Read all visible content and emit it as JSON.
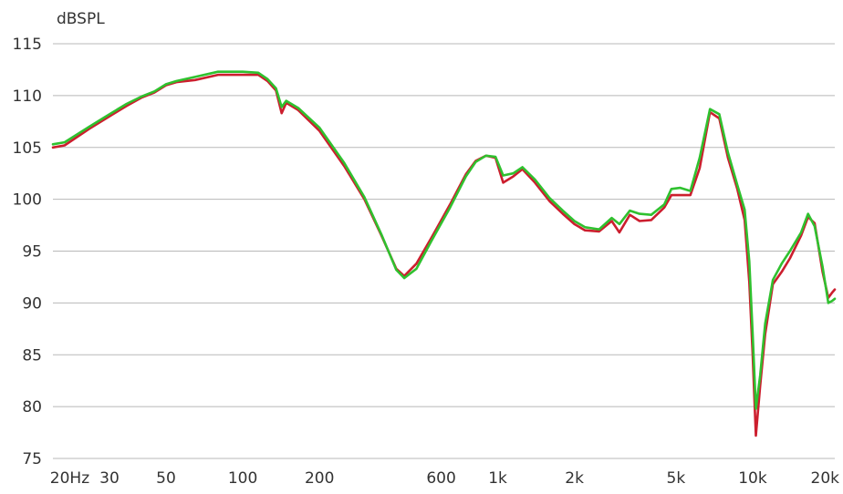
{
  "chart_data": {
    "type": "line",
    "ylabel": "dBSPL",
    "xscale": "log",
    "xlim": [
      18,
      21000
    ],
    "ylim": [
      75,
      115
    ],
    "grid": "horizontal",
    "yticks": [
      75,
      80,
      85,
      90,
      95,
      100,
      105,
      110,
      115
    ],
    "xticks": [
      {
        "label": "20Hz",
        "value": 20
      },
      {
        "label": "30",
        "value": 30
      },
      {
        "label": "50",
        "value": 50
      },
      {
        "label": "100",
        "value": 100
      },
      {
        "label": "200",
        "value": 200
      },
      {
        "label": "600",
        "value": 600
      },
      {
        "label": "1k",
        "value": 1000
      },
      {
        "label": "2k",
        "value": 2000
      },
      {
        "label": "5k",
        "value": 5000
      },
      {
        "label": "10k",
        "value": 10000
      },
      {
        "label": "20k",
        "value": 20000
      }
    ],
    "series": [
      {
        "color": "#cc1e2e",
        "points": [
          [
            18,
            105.0
          ],
          [
            20,
            105.2
          ],
          [
            25,
            106.8
          ],
          [
            30,
            108.0
          ],
          [
            35,
            109.0
          ],
          [
            40,
            109.8
          ],
          [
            45,
            110.3
          ],
          [
            50,
            111.0
          ],
          [
            55,
            111.3
          ],
          [
            65,
            111.5
          ],
          [
            80,
            112.0
          ],
          [
            100,
            112.0
          ],
          [
            115,
            112.0
          ],
          [
            125,
            111.4
          ],
          [
            135,
            110.5
          ],
          [
            142,
            108.3
          ],
          [
            148,
            109.3
          ],
          [
            165,
            108.6
          ],
          [
            200,
            106.6
          ],
          [
            250,
            103.2
          ],
          [
            300,
            100.0
          ],
          [
            350,
            96.5
          ],
          [
            400,
            93.3
          ],
          [
            430,
            92.6
          ],
          [
            480,
            93.8
          ],
          [
            550,
            96.3
          ],
          [
            650,
            99.5
          ],
          [
            750,
            102.4
          ],
          [
            820,
            103.7
          ],
          [
            900,
            104.2
          ],
          [
            980,
            104.0
          ],
          [
            1050,
            101.6
          ],
          [
            1150,
            102.2
          ],
          [
            1250,
            102.9
          ],
          [
            1400,
            101.6
          ],
          [
            1600,
            99.8
          ],
          [
            1800,
            98.6
          ],
          [
            2000,
            97.6
          ],
          [
            2200,
            97.0
          ],
          [
            2500,
            96.9
          ],
          [
            2800,
            97.9
          ],
          [
            3000,
            96.8
          ],
          [
            3300,
            98.5
          ],
          [
            3600,
            97.9
          ],
          [
            4000,
            98.0
          ],
          [
            4500,
            99.2
          ],
          [
            4800,
            100.4
          ],
          [
            5200,
            100.4
          ],
          [
            5700,
            100.4
          ],
          [
            6200,
            103.0
          ],
          [
            6800,
            108.4
          ],
          [
            7400,
            107.8
          ],
          [
            8000,
            104.0
          ],
          [
            8700,
            101.0
          ],
          [
            9300,
            98.0
          ],
          [
            9700,
            92.0
          ],
          [
            10000,
            85.0
          ],
          [
            10300,
            77.2
          ],
          [
            10700,
            82.0
          ],
          [
            11200,
            87.0
          ],
          [
            12000,
            91.8
          ],
          [
            13000,
            93.0
          ],
          [
            14000,
            94.3
          ],
          [
            15500,
            96.5
          ],
          [
            16500,
            98.3
          ],
          [
            17500,
            97.7
          ],
          [
            18800,
            93.0
          ],
          [
            19800,
            90.5
          ],
          [
            20500,
            91.0
          ],
          [
            21000,
            91.3
          ]
        ]
      },
      {
        "color": "#2fc12f",
        "points": [
          [
            18,
            105.3
          ],
          [
            20,
            105.5
          ],
          [
            25,
            107.0
          ],
          [
            30,
            108.2
          ],
          [
            35,
            109.2
          ],
          [
            40,
            109.9
          ],
          [
            45,
            110.4
          ],
          [
            50,
            111.1
          ],
          [
            55,
            111.4
          ],
          [
            65,
            111.8
          ],
          [
            80,
            112.3
          ],
          [
            100,
            112.3
          ],
          [
            115,
            112.2
          ],
          [
            125,
            111.6
          ],
          [
            135,
            110.7
          ],
          [
            142,
            108.9
          ],
          [
            148,
            109.5
          ],
          [
            165,
            108.8
          ],
          [
            200,
            106.9
          ],
          [
            250,
            103.5
          ],
          [
            300,
            100.2
          ],
          [
            350,
            96.6
          ],
          [
            400,
            93.2
          ],
          [
            430,
            92.4
          ],
          [
            480,
            93.3
          ],
          [
            550,
            96.0
          ],
          [
            650,
            99.2
          ],
          [
            750,
            102.2
          ],
          [
            820,
            103.6
          ],
          [
            900,
            104.2
          ],
          [
            980,
            104.1
          ],
          [
            1050,
            102.3
          ],
          [
            1150,
            102.5
          ],
          [
            1250,
            103.1
          ],
          [
            1400,
            101.9
          ],
          [
            1600,
            100.1
          ],
          [
            1800,
            98.9
          ],
          [
            2000,
            97.9
          ],
          [
            2200,
            97.3
          ],
          [
            2500,
            97.1
          ],
          [
            2800,
            98.2
          ],
          [
            3000,
            97.6
          ],
          [
            3300,
            98.9
          ],
          [
            3600,
            98.6
          ],
          [
            4000,
            98.5
          ],
          [
            4500,
            99.5
          ],
          [
            4800,
            101.0
          ],
          [
            5200,
            101.1
          ],
          [
            5700,
            100.8
          ],
          [
            6200,
            104.0
          ],
          [
            6800,
            108.7
          ],
          [
            7400,
            108.2
          ],
          [
            8000,
            104.5
          ],
          [
            8700,
            101.4
          ],
          [
            9300,
            99.0
          ],
          [
            9700,
            94.0
          ],
          [
            10000,
            87.0
          ],
          [
            10300,
            79.8
          ],
          [
            10700,
            83.0
          ],
          [
            11200,
            88.0
          ],
          [
            12000,
            92.2
          ],
          [
            13000,
            93.8
          ],
          [
            14000,
            95.0
          ],
          [
            15500,
            96.8
          ],
          [
            16500,
            98.6
          ],
          [
            17500,
            97.4
          ],
          [
            18800,
            93.5
          ],
          [
            19800,
            90.0
          ],
          [
            20500,
            90.2
          ],
          [
            21000,
            90.4
          ]
        ]
      }
    ]
  }
}
